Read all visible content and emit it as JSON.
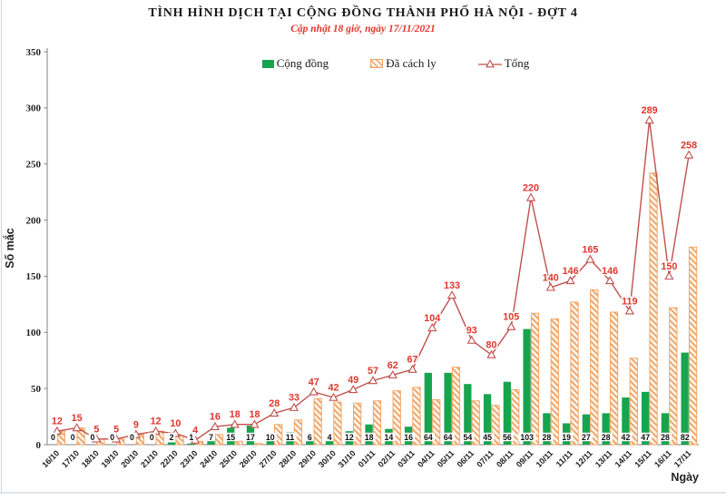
{
  "chart_data": {
    "type": "bar+line combo (clustered bars with line overlay)",
    "title": "TÌNH HÌNH DỊCH TẠI CỘNG ĐỒNG THÀNH PHỐ HÀ NỘI - ĐỢT 4",
    "subtitle": "Cập nhật 18 giờ, ngày 17/11/2021",
    "xlabel": "Ngày",
    "ylabel": "Số mắc",
    "ylim": [
      0,
      350
    ],
    "y_ticks": [
      0,
      50,
      100,
      150,
      200,
      250,
      300,
      350
    ],
    "grid": false,
    "legend_position": "top",
    "categories": [
      "16/10",
      "17/10",
      "18/10",
      "19/10",
      "20/10",
      "21/10",
      "22/10",
      "23/10",
      "24/10",
      "25/10",
      "26/10",
      "27/10",
      "28/10",
      "29/10",
      "30/10",
      "31/10",
      "01/11",
      "02/11",
      "03/11",
      "04/11",
      "05/11",
      "06/11",
      "07/11",
      "08/11",
      "09/11",
      "10/11",
      "11/11",
      "12/11",
      "13/11",
      "14/11",
      "15/11",
      "16/11",
      "17/11"
    ],
    "series": [
      {
        "name": "Cộng đồng",
        "type": "bar",
        "style": "solid-green",
        "labels_shown": true,
        "values": [
          0,
          0,
          0,
          0,
          0,
          0,
          2,
          1,
          7,
          15,
          17,
          10,
          11,
          6,
          4,
          12,
          18,
          14,
          16,
          64,
          64,
          54,
          45,
          56,
          103,
          28,
          19,
          27,
          28,
          42,
          47,
          28,
          82
        ]
      },
      {
        "name": "Đã cách ly",
        "type": "bar",
        "style": "orange-diagonal-hatch",
        "labels_shown": false,
        "values": [
          12,
          15,
          5,
          5,
          9,
          12,
          8,
          3,
          9,
          3,
          1,
          18,
          22,
          41,
          38,
          37,
          39,
          48,
          51,
          40,
          69,
          39,
          35,
          49,
          117,
          112,
          127,
          138,
          118,
          77,
          242,
          122,
          176
        ]
      },
      {
        "name": "Tổng",
        "type": "line",
        "style": "red-line-open-triangle-markers",
        "labels_shown": true,
        "values": [
          12,
          15,
          5,
          5,
          9,
          12,
          10,
          4,
          16,
          18,
          18,
          28,
          33,
          47,
          42,
          49,
          57,
          62,
          67,
          104,
          133,
          93,
          80,
          105,
          220,
          140,
          146,
          165,
          146,
          119,
          289,
          150,
          258
        ]
      }
    ],
    "colors": {
      "green": "#17a44f",
      "orange": "#f0a160",
      "hatch_bg": "#fdf5ec",
      "line_red": "#c0504d",
      "label_red": "#e0362d",
      "axis": "#808080",
      "text": "#1f1f1f",
      "frame": "#ccd6e0"
    }
  }
}
